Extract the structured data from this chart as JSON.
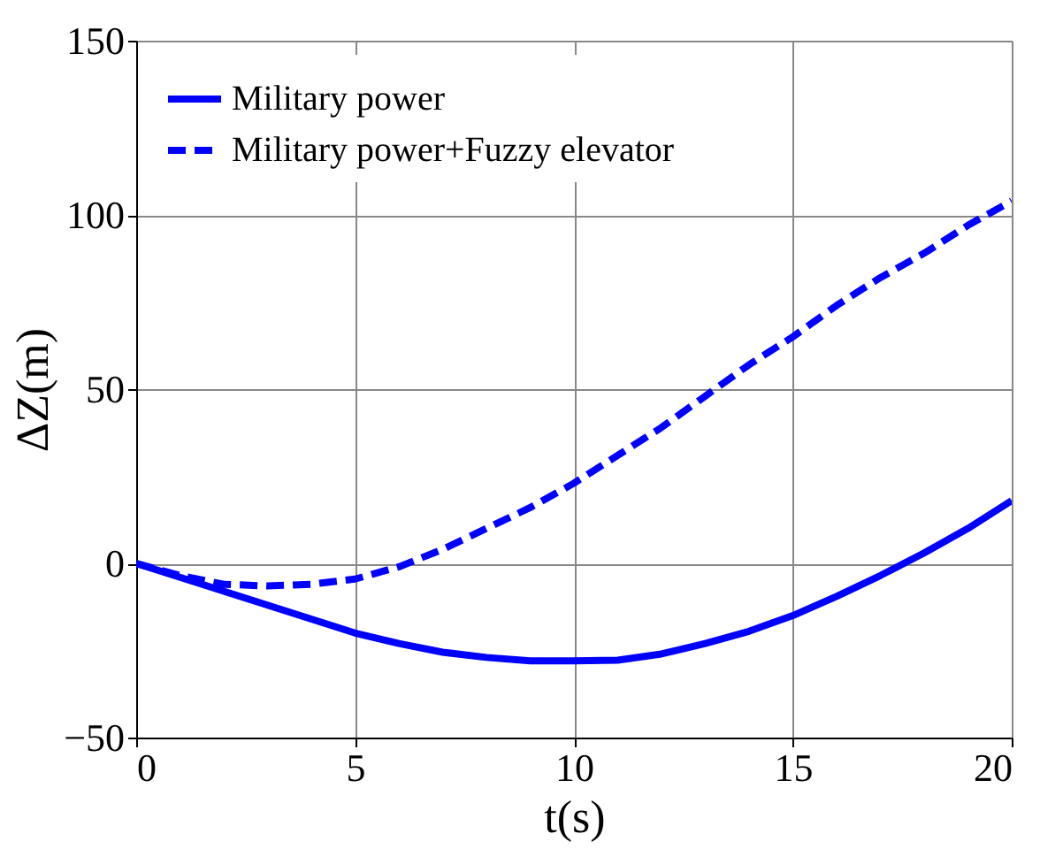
{
  "chart_data": {
    "type": "line",
    "xlabel": "t(s)",
    "ylabel": "ΔZ(m)",
    "x": [
      0,
      1,
      2,
      3,
      4,
      5,
      6,
      7,
      8,
      9,
      10,
      11,
      12,
      13,
      14,
      15,
      16,
      17,
      18,
      19,
      20
    ],
    "series": [
      {
        "name": "Military power",
        "color": "#0000ff",
        "line_style": "solid",
        "values": [
          0,
          -4,
          -8,
          -12,
          -16,
          -20,
          -23,
          -25.5,
          -27,
          -28,
          -28,
          -27.8,
          -26,
          -23,
          -19.5,
          -15,
          -9.5,
          -3.5,
          3,
          10,
          18
        ]
      },
      {
        "name": "Military power+Fuzzy elevator",
        "color": "#0000ff",
        "line_style": "dashed",
        "values": [
          0,
          -3.5,
          -6,
          -6.5,
          -6,
          -4.5,
          -1,
          4,
          10,
          16,
          23,
          31,
          39,
          48,
          57,
          65,
          74,
          82,
          89,
          97,
          104
        ]
      }
    ],
    "xlim": [
      0,
      20
    ],
    "xticks": [
      0,
      5,
      10,
      15,
      20
    ],
    "ylim": [
      -50,
      150
    ],
    "yticks": [
      -50,
      0,
      50,
      100,
      150
    ],
    "grid": true,
    "legend": "top left",
    "marker": "none"
  }
}
